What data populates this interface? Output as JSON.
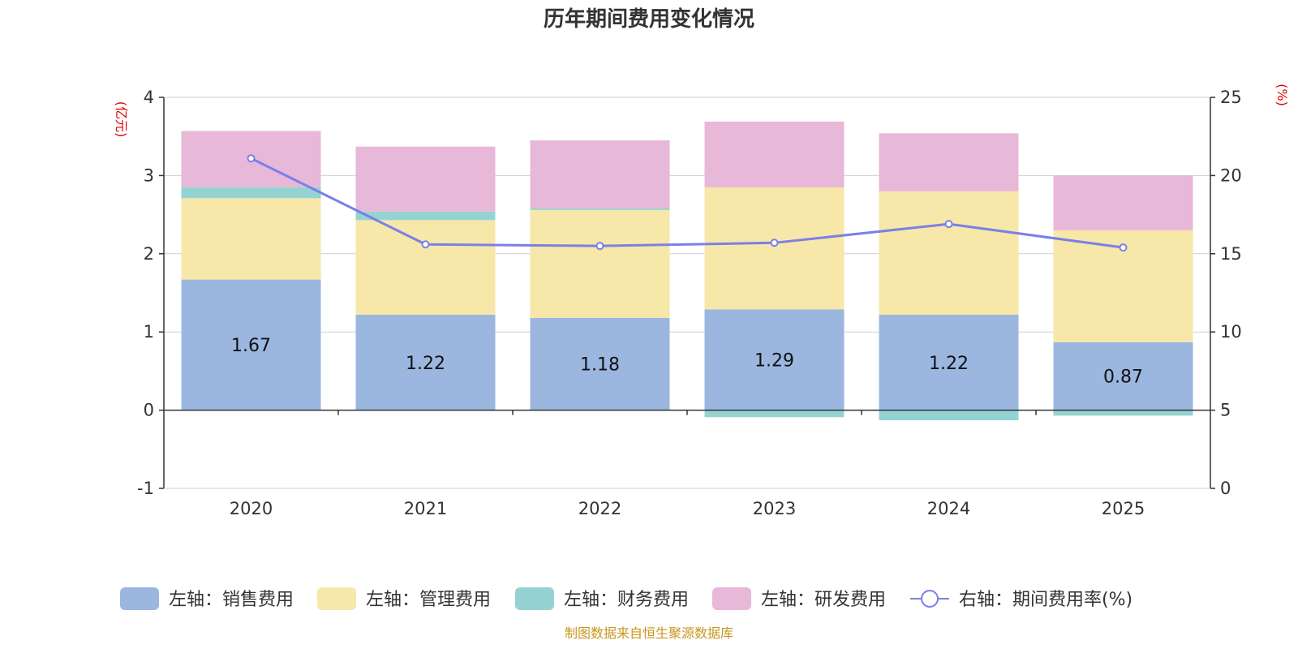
{
  "chart_data": {
    "type": "bar",
    "title": "历年期间费用变化情况",
    "categories": [
      "2020",
      "2021",
      "2022",
      "2023",
      "2024",
      "2025"
    ],
    "left_axis": {
      "unit_label": "(亿元)",
      "ylim": [
        -1,
        4
      ],
      "ticks": [
        "-1",
        "0",
        "1",
        "2",
        "3",
        "4"
      ]
    },
    "right_axis": {
      "unit_label": "(%)",
      "ylim": [
        0,
        25
      ],
      "ticks": [
        "0",
        "5",
        "10",
        "15",
        "20",
        "25"
      ]
    },
    "series": [
      {
        "name": "左轴：销售费用",
        "axis": "left",
        "kind": "stacked-bar",
        "color": "#9bb7e0",
        "values": [
          1.67,
          1.22,
          1.18,
          1.29,
          1.22,
          0.87
        ],
        "labels": [
          "1.67",
          "1.22",
          "1.18",
          "1.29",
          "1.22",
          "0.87"
        ]
      },
      {
        "name": "左轴：管理费用",
        "axis": "left",
        "kind": "stacked-bar",
        "color": "#f7e7a8",
        "values": [
          1.04,
          1.21,
          1.38,
          1.56,
          1.58,
          1.43
        ]
      },
      {
        "name": "左轴：财务费用",
        "axis": "left",
        "kind": "stacked-bar",
        "color": "#95d3d3",
        "values": [
          0.14,
          0.11,
          0.02,
          -0.09,
          -0.13,
          -0.07
        ]
      },
      {
        "name": "左轴：研发费用",
        "axis": "left",
        "kind": "stacked-bar",
        "color": "#e7b8d8",
        "values": [
          0.72,
          0.83,
          0.87,
          0.84,
          0.74,
          0.7
        ]
      },
      {
        "name": "右轴：期间费用率(%)",
        "axis": "right",
        "kind": "line",
        "color": "#7b7fe8",
        "values": [
          21.1,
          15.6,
          15.5,
          15.7,
          16.9,
          15.4
        ]
      }
    ],
    "legend_position": "bottom",
    "grid": true
  },
  "footer": {
    "source": "制图数据来自恒生聚源数据库"
  }
}
